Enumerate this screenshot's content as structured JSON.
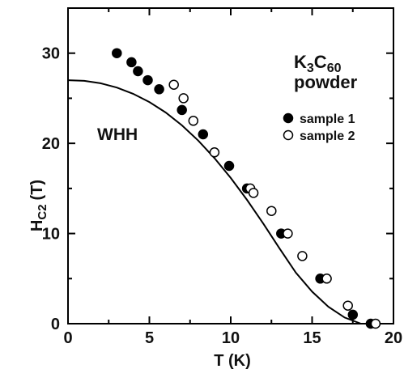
{
  "chart_data": {
    "type": "scatter",
    "xlabel": "T (K)",
    "ylabel": "HC2 (T)",
    "ylabel_main": "H",
    "ylabel_sub": "C2",
    "ylabel_unit": "(T)",
    "xlim": [
      0,
      20
    ],
    "ylim": [
      0,
      35
    ],
    "x_ticks": [
      0,
      5,
      10,
      15,
      20
    ],
    "y_ticks": [
      0,
      10,
      20,
      30
    ],
    "grid": false,
    "legend_position": "right",
    "annotations": {
      "material_line1_parts": [
        [
          "K",
          false
        ],
        [
          "3",
          true
        ],
        [
          "C",
          false
        ],
        [
          "60",
          true
        ]
      ],
      "material_line2": "powder",
      "curve_label": "WHH"
    },
    "series": [
      {
        "name": "sample 1",
        "marker": "filled-circle",
        "color": "#000000",
        "points": [
          [
            3.0,
            30.0
          ],
          [
            3.9,
            29.0
          ],
          [
            4.3,
            28.0
          ],
          [
            4.9,
            27.0
          ],
          [
            5.6,
            26.0
          ],
          [
            7.0,
            23.7
          ],
          [
            8.3,
            21.0
          ],
          [
            9.9,
            17.5
          ],
          [
            11.0,
            15.0
          ],
          [
            13.1,
            10.0
          ],
          [
            15.5,
            5.0
          ],
          [
            17.5,
            1.0
          ],
          [
            18.6,
            0.0
          ]
        ]
      },
      {
        "name": "sample 2",
        "marker": "open-circle",
        "color": "#000000",
        "points": [
          [
            6.5,
            26.5
          ],
          [
            7.1,
            25.0
          ],
          [
            7.7,
            22.5
          ],
          [
            9.0,
            19.0
          ],
          [
            11.2,
            15.0
          ],
          [
            11.4,
            14.5
          ],
          [
            12.5,
            12.5
          ],
          [
            13.5,
            10.0
          ],
          [
            14.4,
            7.5
          ],
          [
            15.9,
            5.0
          ],
          [
            17.2,
            2.0
          ],
          [
            18.9,
            0.0
          ]
        ]
      },
      {
        "name": "WHH",
        "type": "line",
        "color": "#000000",
        "points": [
          [
            0,
            27.0
          ],
          [
            1,
            26.93
          ],
          [
            2,
            26.66
          ],
          [
            3,
            26.19
          ],
          [
            4,
            25.5
          ],
          [
            5,
            24.58
          ],
          [
            6,
            23.42
          ],
          [
            7,
            22.0
          ],
          [
            8,
            20.31
          ],
          [
            9,
            18.36
          ],
          [
            10,
            16.16
          ],
          [
            11,
            13.73
          ],
          [
            12,
            11.1
          ],
          [
            13,
            8.34
          ],
          [
            14,
            5.66
          ],
          [
            15,
            3.55
          ],
          [
            16,
            1.88
          ],
          [
            17,
            0.68
          ],
          [
            18,
            0.0
          ]
        ]
      }
    ]
  }
}
